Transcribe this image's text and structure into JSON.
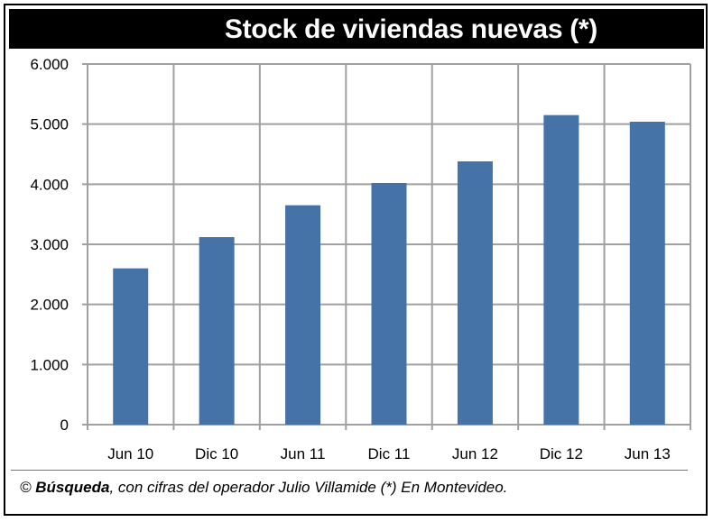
{
  "title": "Stock de viviendas nuevas (*)",
  "footer": {
    "prefix": "© ",
    "source": "Búsqueda",
    "text": ", con cifras del operador Julio Villamide (*) En Montevideo."
  },
  "colors": {
    "bar": "#4573a7",
    "grid": "#a0a0a0",
    "title_bg": "#000000",
    "title_fg": "#ffffff"
  },
  "chart_data": {
    "type": "bar",
    "title": "Stock de viviendas nuevas (*)",
    "categories": [
      "Jun 10",
      "Dic 10",
      "Jun 11",
      "Dic 11",
      "Jun 12",
      "Dic 12",
      "Jun 13"
    ],
    "values": [
      2600,
      3120,
      3650,
      4020,
      4380,
      5150,
      5040
    ],
    "ylim": [
      0,
      6000
    ],
    "yticks": [
      0,
      1000,
      2000,
      3000,
      4000,
      5000,
      6000
    ],
    "ytick_labels": [
      "0",
      "1.000",
      "2.000",
      "3.000",
      "4.000",
      "5.000",
      "6.000"
    ],
    "grid": true,
    "legend": "none"
  }
}
